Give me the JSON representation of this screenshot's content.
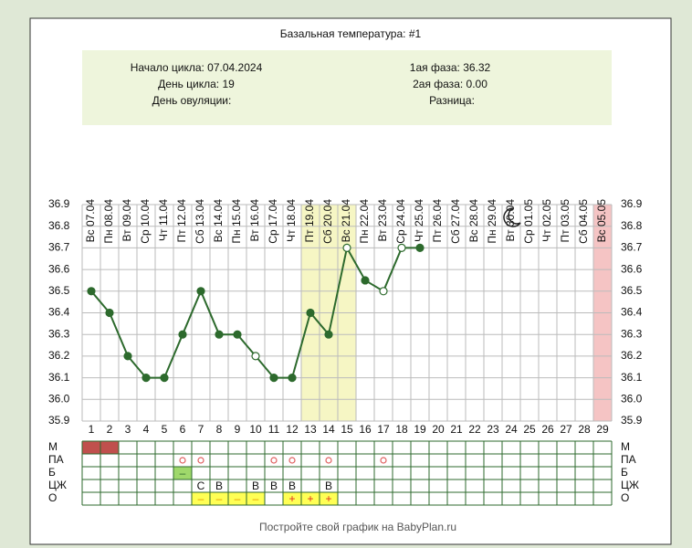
{
  "chart_data": {
    "type": "line",
    "title": "Базальная температура: #1",
    "info": {
      "cycle_start": "Начало цикла: 07.04.2024",
      "cycle_day": "День цикла: 19",
      "ovulation_day": "День овуляции:",
      "phase1": "1ая фаза: 36.32",
      "phase2": "2ая фаза: 0.00",
      "difference": "Разница:"
    },
    "dates": [
      "Вс 07.04",
      "Пн 08.04",
      "Вт 09.04",
      "Ср 10.04",
      "Чт 11.04",
      "Пт 12.04",
      "Сб 13.04",
      "Вс 14.04",
      "Пн 15.04",
      "Вт 16.04",
      "Ср 17.04",
      "Чт 18.04",
      "Пт 19.04",
      "Сб 20.04",
      "Вс 21.04",
      "Пн 22.04",
      "Вт 23.04",
      "Ср 24.04",
      "Чт 25.04",
      "Пт 26.04",
      "Сб 27.04",
      "Вс 28.04",
      "Пн 29.04",
      "Вт 30.04",
      "Ср 01.05",
      "Чт 02.05",
      "Пт 03.05",
      "Сб 04.05",
      "Вс 05.05"
    ],
    "categories": [
      1,
      2,
      3,
      4,
      5,
      6,
      7,
      8,
      9,
      10,
      11,
      12,
      13,
      14,
      15,
      16,
      17,
      18,
      19,
      20,
      21,
      22,
      23,
      24,
      25,
      26,
      27,
      28,
      29
    ],
    "series": [
      {
        "color": "#2d6a2d",
        "values": [
          36.5,
          36.4,
          36.2,
          36.1,
          36.1,
          36.3,
          36.5,
          36.3,
          36.3,
          36.2,
          36.1,
          36.1,
          36.4,
          36.3,
          36.7,
          36.55,
          36.5,
          36.7,
          36.7,
          null,
          null,
          null,
          null,
          null,
          null,
          null,
          null,
          null,
          null
        ],
        "markers": [
          "filled",
          "filled",
          "filled",
          "filled",
          "filled",
          "filled",
          "filled",
          "filled",
          "filled",
          "open",
          "filled",
          "filled",
          "filled",
          "filled",
          "open",
          "filled",
          "open",
          "open",
          "filled",
          null,
          null,
          null,
          null,
          null,
          null,
          null,
          null,
          null,
          null
        ]
      }
    ],
    "ylim": [
      35.9,
      36.9
    ],
    "yticks": [
      35.9,
      {
        "value": 36,
        "label": "36.0"
      },
      36.1,
      36.2,
      36.3,
      36.4,
      36.5,
      36.6,
      36.7,
      36.8,
      36.9
    ],
    "grid": true,
    "highlight_days": [
      {
        "day": 13,
        "color": "#f6f6c4"
      },
      {
        "day": 14,
        "color": "#f6f6c4"
      },
      {
        "day": 15,
        "color": "#f6f6c4"
      },
      {
        "day": 29,
        "color": "#f5c4c4"
      }
    ]
  },
  "cycle_table": {
    "rows": [
      {
        "label": "М",
        "cells": [
          {
            "day": 1,
            "fill": "#c0504d"
          },
          {
            "day": 2,
            "fill": "#c0504d"
          }
        ]
      },
      {
        "label": "ПА",
        "cells": [
          {
            "day": 6,
            "symbol": "circle"
          },
          {
            "day": 7,
            "symbol": "circle"
          },
          {
            "day": 11,
            "symbol": "circle"
          },
          {
            "day": 12,
            "symbol": "circle"
          },
          {
            "day": 14,
            "symbol": "circle"
          },
          {
            "day": 17,
            "symbol": "circle"
          }
        ]
      },
      {
        "label": "Б",
        "cells": [
          {
            "day": 6,
            "fill": "#9fd86b",
            "text": "–",
            "color": "#2d6a2d"
          }
        ]
      },
      {
        "label": "ЦЖ",
        "cells": [
          {
            "day": 7,
            "text": "С"
          },
          {
            "day": 8,
            "text": "В"
          },
          {
            "day": 10,
            "text": "В"
          },
          {
            "day": 11,
            "text": "В"
          },
          {
            "day": 12,
            "text": "В"
          },
          {
            "day": 14,
            "text": "В"
          }
        ]
      },
      {
        "label": "О",
        "cells": [
          {
            "day": 7,
            "fill": "#ffff55",
            "text": "–",
            "color": "#e69500"
          },
          {
            "day": 8,
            "fill": "#ffff55",
            "text": "–",
            "color": "#e69500"
          },
          {
            "day": 9,
            "fill": "#ffff55",
            "text": "–",
            "color": "#e69500"
          },
          {
            "day": 10,
            "fill": "#ffff55",
            "text": "–",
            "color": "#e69500"
          },
          {
            "day": 12,
            "fill": "#ffff55",
            "text": "+",
            "color": "#e03020"
          },
          {
            "day": 13,
            "fill": "#ffff55",
            "text": "+",
            "color": "#e03020"
          },
          {
            "day": 14,
            "fill": "#ffff55",
            "text": "+",
            "color": "#e03020"
          }
        ]
      }
    ]
  },
  "footer": "Постройте свой график на BabyPlan.ru"
}
